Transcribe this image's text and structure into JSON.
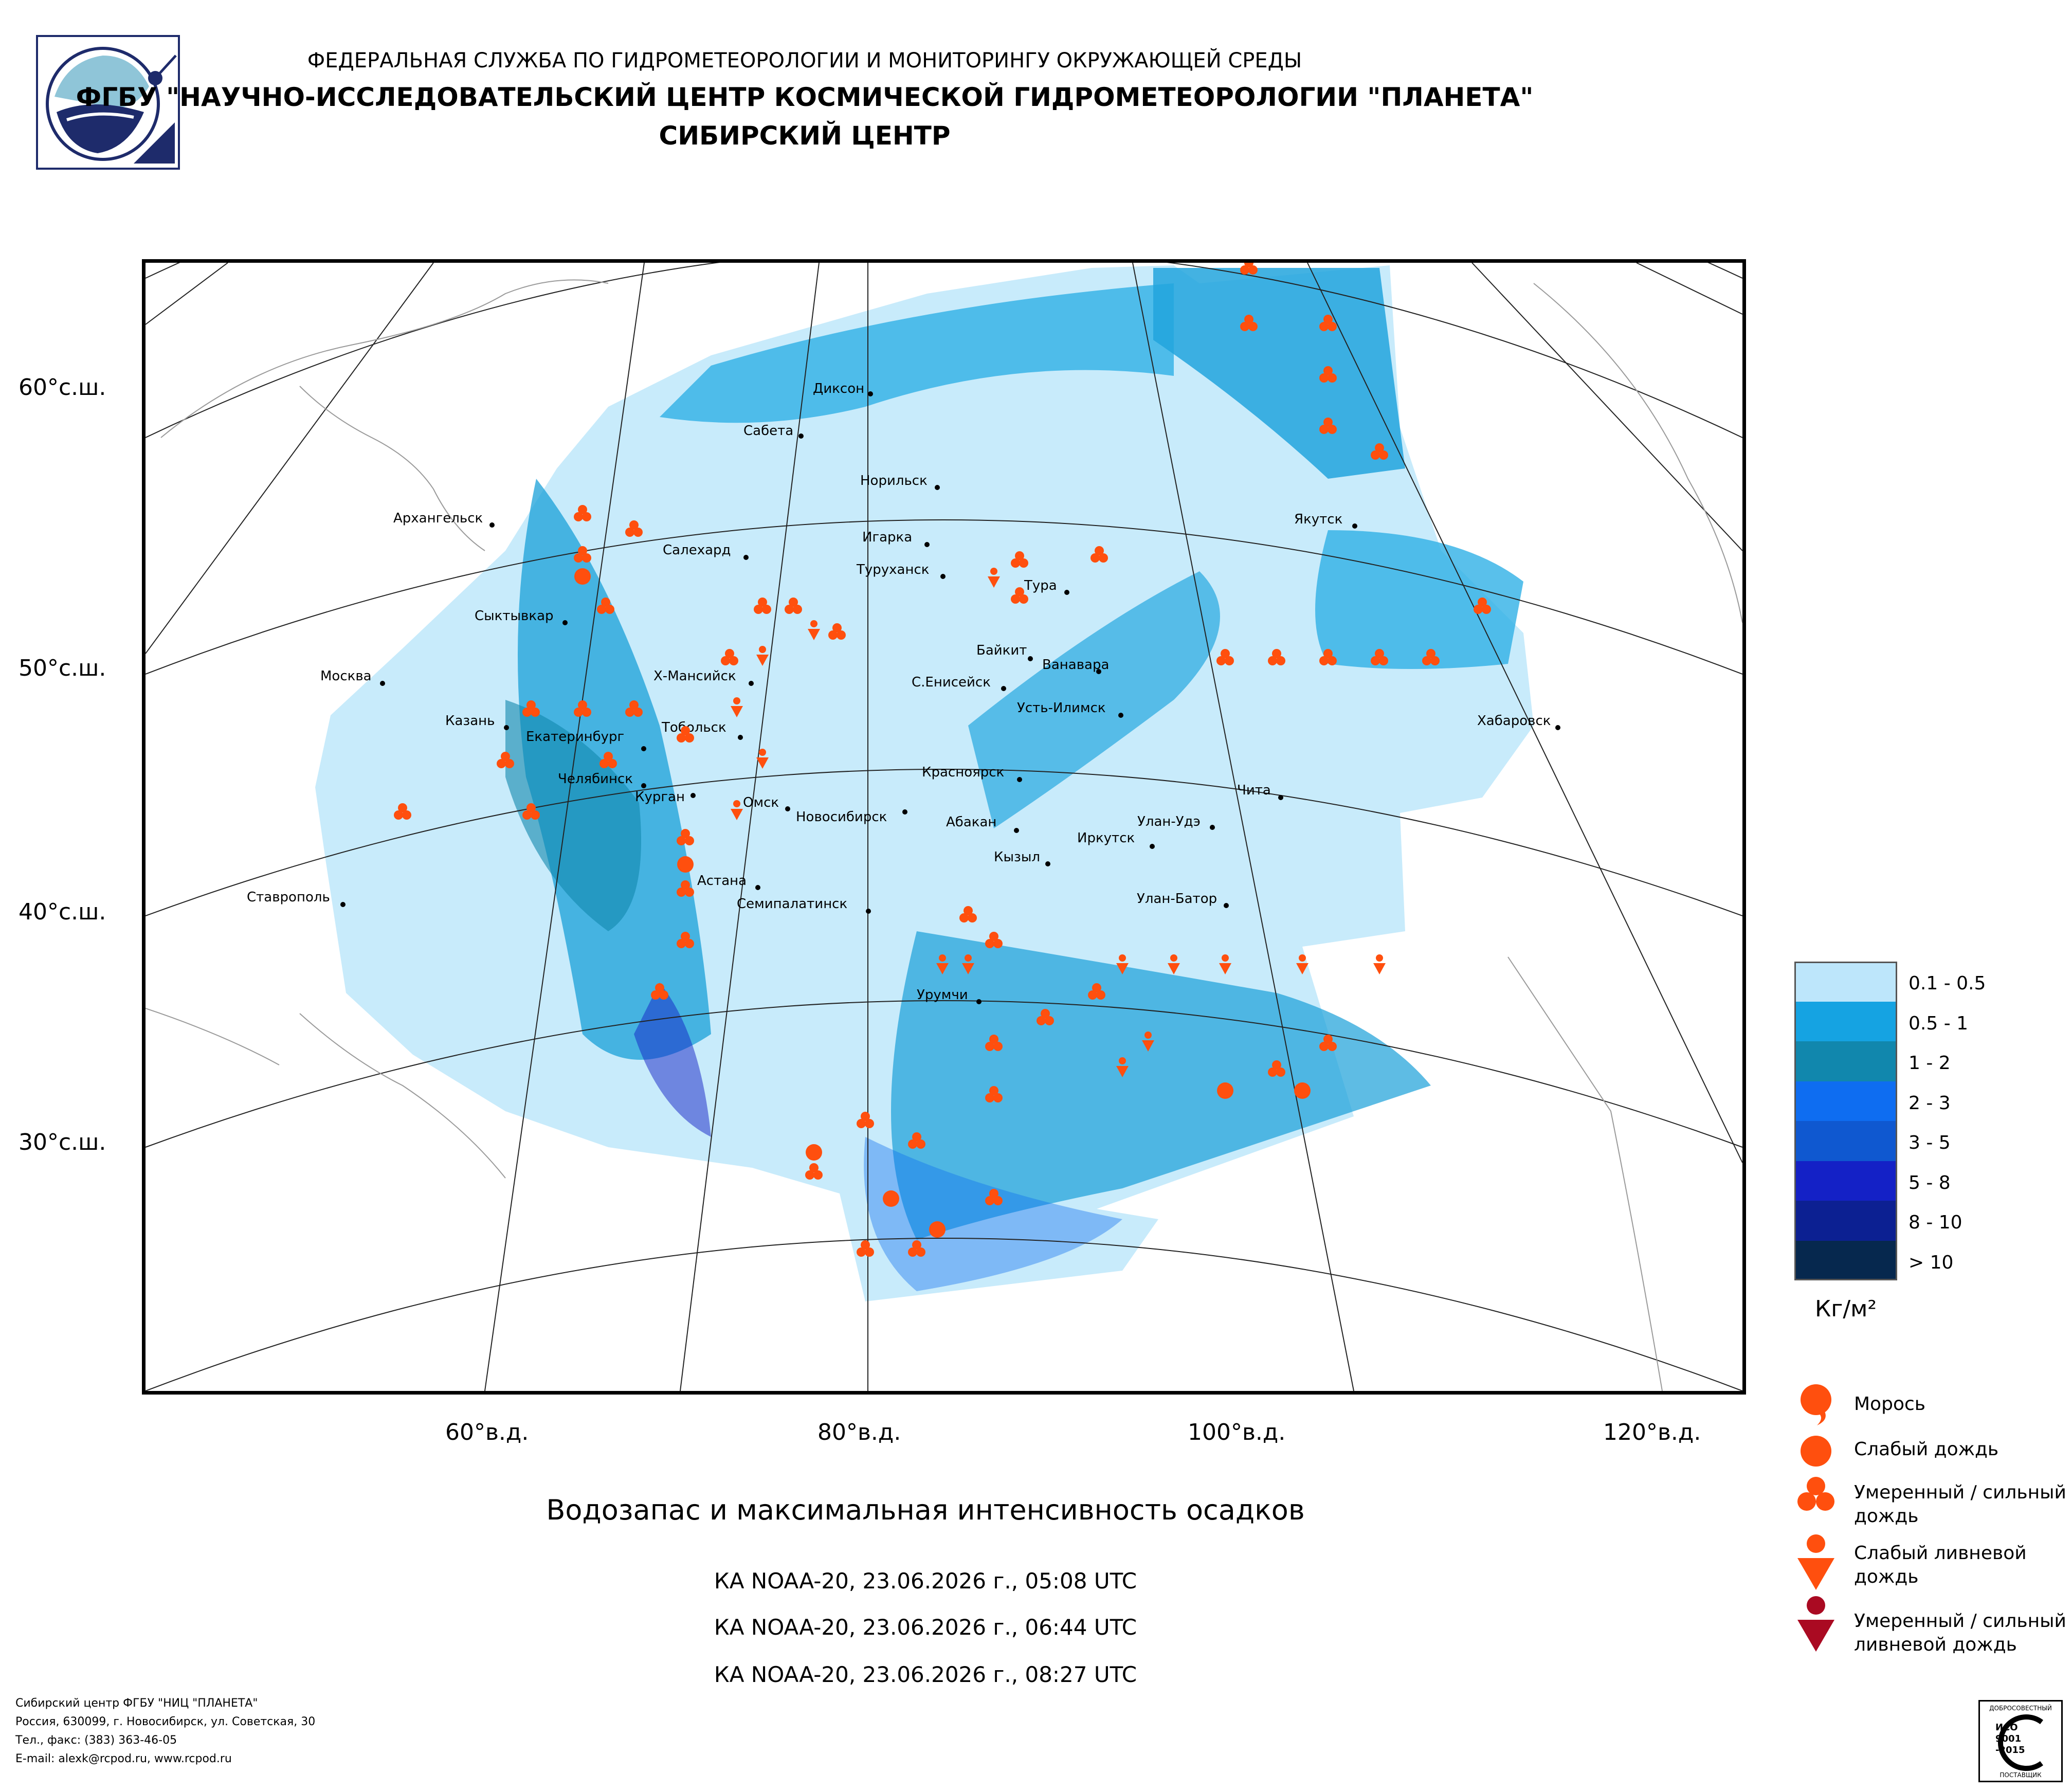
{
  "header": {
    "line1": "ФЕДЕРАЛЬНАЯ СЛУЖБА ПО ГИДРОМЕТЕОРОЛОГИИ И МОНИТОРИНГУ ОКРУЖАЮЩЕЙ СРЕДЫ",
    "line2": "ФГБУ \"НАУЧНО-ИССЛЕДОВАТЕЛЬСКИЙ ЦЕНТР КОСМИЧЕСКОЙ ГИДРОМЕТЕОРОЛОГИИ \"ПЛАНЕТА\"",
    "line3": "СИБИРСКИЙ ЦЕНТР"
  },
  "latitude_labels": [
    "60°с.ш.",
    "50°с.ш.",
    "40°с.ш.",
    "30°с.ш."
  ],
  "longitude_labels": [
    "60°в.д.",
    "80°в.д.",
    "100°в.д.",
    "120°в.д."
  ],
  "cities": [
    "Диксон",
    "Сабета",
    "Норильск",
    "Игарка",
    "Архангельск",
    "Салехард",
    "Туруханск",
    "Тура",
    "Якутск",
    "Сыктывкар",
    "Байкит",
    "Ванавара",
    "Москва",
    "Х-Мансийск",
    "С.Енисейск",
    "Усть-Илимск",
    "Казань",
    "Екатеринбург",
    "Тобольск",
    "Хабаровск",
    "Челябинск",
    "Курган",
    "Омск",
    "Красноярск",
    "Чита",
    "Новосибирск",
    "Абакан",
    "Улан-Удэ",
    "Иркутск",
    "Кызыл",
    "Астана",
    "Ставрополь",
    "Семипалатинск",
    "Улан-Батор",
    "Урумчи"
  ],
  "colors": {
    "precip_symbol": "#ff4f0e",
    "heavy_shower": "#aa0a22",
    "frame": "#000000"
  },
  "legend": {
    "classes": [
      {
        "label": "0.1 - 0.5",
        "color": "#bde6fb"
      },
      {
        "label": "0.5 - 1",
        "color": "#15a3e2"
      },
      {
        "label": "1 - 2",
        "color": "#1187ad"
      },
      {
        "label": "2 - 3",
        "color": "#0e6df1"
      },
      {
        "label": "3 - 5",
        "color": "#0f58d0"
      },
      {
        "label": "5 - 8",
        "color": "#1421c6"
      },
      {
        "label": "8 - 10",
        "color": "#0c2092"
      },
      {
        "label": "> 10",
        "color": "#06284e"
      }
    ],
    "unit": "Кг/м²",
    "symbols": [
      {
        "label": "Морось",
        "icon": "drizzle-icon"
      },
      {
        "label": "Слабый дождь",
        "icon": "light-rain-icon"
      },
      {
        "label": "Умеренный / сильный дождь",
        "icon": "moderate-rain-icon"
      },
      {
        "label": "Слабый ливневой дождь",
        "icon": "light-shower-icon"
      },
      {
        "label": "Умеренный / сильный ливневой дождь",
        "icon": "heavy-shower-icon"
      }
    ]
  },
  "caption": {
    "title": "Водозапас и максимальная интенсивность осадков",
    "passes": [
      "КА NOAA-20, 23.06.2026 г., 05:08 UTC",
      "КА NOAA-20, 23.06.2026 г., 06:44 UTC",
      "КА NOAA-20, 23.06.2026 г., 08:27 UTC"
    ]
  },
  "footer": {
    "line1": "Сибирский центр ФГБУ \"НИЦ \"ПЛАНЕТА\"",
    "line2": "Россия, 630099, г. Новосибирск, ул. Советская, 30",
    "line3": "Тел., факс: (383) 363-46-05",
    "line4": "E-mail: alexk@rcpod.ru, www.rcpod.ru"
  },
  "cert_badge": {
    "top": "ДОБРОСОВЕСТНЫЙ",
    "iso": "ИСО",
    "num": "9001",
    "year": "-2015",
    "bottom": "ПОСТАВЩИК"
  }
}
